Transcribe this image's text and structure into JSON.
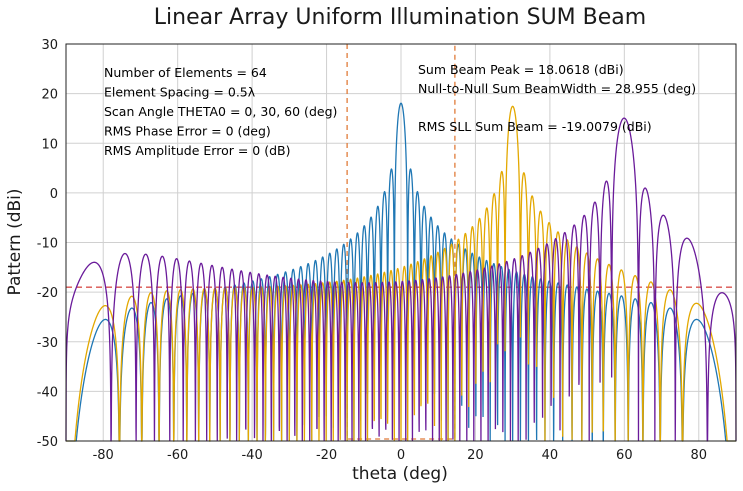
{
  "chart_data": {
    "type": "line",
    "title": "Linear Array Uniform Illumination SUM Beam",
    "xlabel": "theta (deg)",
    "ylabel": "Pattern (dBi)",
    "xlim": [
      -90,
      90
    ],
    "ylim": [
      -50,
      30
    ],
    "xticks": [
      -80,
      -60,
      -40,
      -20,
      0,
      20,
      40,
      60,
      80
    ],
    "yticks": [
      30,
      20,
      10,
      0,
      -10,
      -20,
      -30,
      -40,
      -50
    ],
    "grid": true,
    "array": {
      "elements": 64,
      "spacing_wavelengths": 0.5,
      "scan_angles_deg": [
        0,
        30,
        60
      ],
      "peak_dbi": 18.0618
    },
    "series": [
      {
        "scan_deg": 0,
        "color": "#1f77b4"
      },
      {
        "scan_deg": 30,
        "color": "#e3a800"
      },
      {
        "scan_deg": 60,
        "color": "#6a1b9a"
      }
    ],
    "sll_line": {
      "value": -19.0079,
      "color": "#d9534f"
    },
    "beamwidth_markers": {
      "x": [
        -14.4775,
        14.4775
      ],
      "color": "#e07b39"
    },
    "annotations_left": [
      "Number of Elements = 64",
      "Element Spacing = 0.5λ",
      "Scan Angle THETA0 = 0, 30, 60 (deg)",
      "RMS Phase Error = 0 (deg)",
      "RMS Amplitude Error = 0 (dB)"
    ],
    "annotations_right": [
      "Sum Beam Peak = 18.0618 (dBi)",
      "Null-to-Null Sum BeamWidth = 28.955 (deg)",
      "RMS SLL Sum Beam = -19.0079 (dBi)"
    ]
  }
}
